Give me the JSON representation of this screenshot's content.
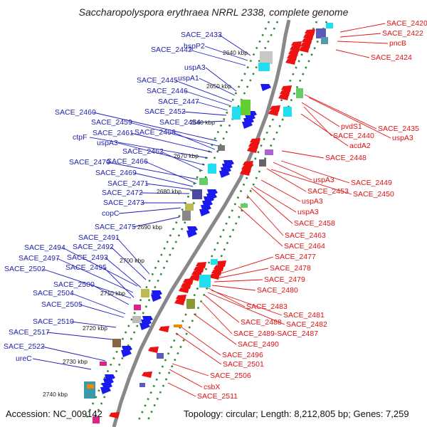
{
  "title": "Saccharopolyspora erythraea NRRL 2338, complete genome",
  "accession": "Accession: NC_009142",
  "summary": "Topology: circular; Length: 8,212,805 bp; Genes: 7,259",
  "colors": {
    "forward_label": "#2222aa",
    "reverse_label": "#dd1111",
    "forward_gene": "#1a1aee",
    "reverse_gene": "#ee1111",
    "backbone": "#888888",
    "dots": "#2e8b2e"
  },
  "kbp_ticks": [
    "2640 kbp",
    "2650 kbp",
    "2660 kbp",
    "2670 kbp",
    "2680 kbp",
    "2690 kbp",
    "2700 kbp",
    "2710 kbp",
    "2720 kbp",
    "2730 kbp",
    "2740 kbp"
  ],
  "forward_labels": [
    "SACE_2433",
    "hspP2",
    "SACE_2442",
    "uspA3",
    "uspA1",
    "SACE_2445",
    "SACE_2446",
    "SACE_2447",
    "SACE_2452",
    "SACE_2454",
    "SACE_2460",
    "SACE_2459",
    "ctpF",
    "SACE_2461",
    "SACE_2456",
    "uspA3",
    "SACE_2462",
    "SACE_2470",
    "SACE_2466",
    "SACE_2469",
    "SACE_2471",
    "SACE_2472",
    "SACE_2473",
    "copC",
    "SACE_2475",
    "SACE_2491",
    "SACE_2492",
    "SACE_2494",
    "SACE_2493",
    "SACE_2497",
    "SACE_2495",
    "SACE_2502",
    "SACE_2500",
    "SACE_2504",
    "SACE_2505",
    "SACE_2510",
    "SACE_2517",
    "SACE_2522",
    "ureC"
  ],
  "reverse_labels": [
    "SACE_2420",
    "SACE_2422",
    "pncB",
    "SACE_2424",
    "SACE_2435",
    "pvdS1",
    "uspA3",
    "SACE_2440",
    "acdA2",
    "SACE_2448",
    "SACE_2449",
    "uspA3",
    "SACE_2453",
    "SACE_2450",
    "uspA3",
    "uspA3",
    "SACE_2458",
    "SACE_2463",
    "SACE_2464",
    "SACE_2477",
    "SACE_2478",
    "SACE_2479",
    "SACE_2480",
    "SACE_2483",
    "SACE_2481",
    "SACE_2488",
    "SACE_2482",
    "SACE_2489-SACE_2487",
    "SACE_2490",
    "SACE_2496",
    "SACE_2501",
    "SACE_2506",
    "csbX",
    "SACE_2511"
  ]
}
